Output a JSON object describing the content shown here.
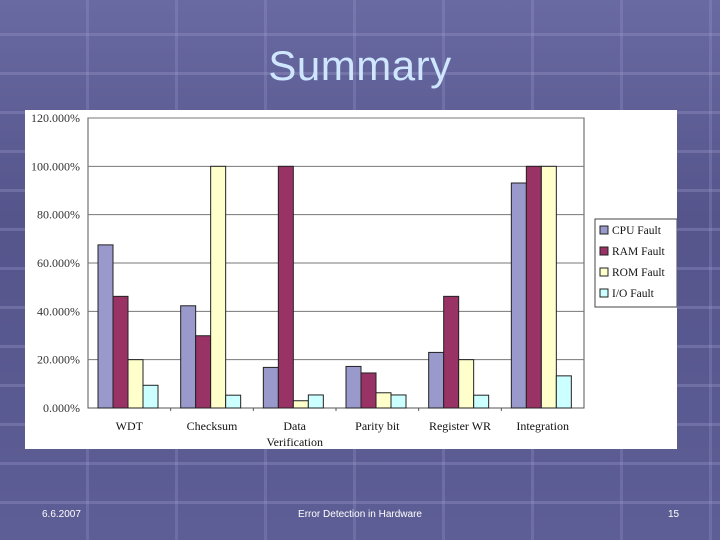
{
  "slide": {
    "title": "Summary",
    "footer": {
      "date": "6.6.2007",
      "center": "Error Detection in Hardware",
      "page": "15"
    }
  },
  "colors": {
    "background": "#5c5c94",
    "title": "#cfe6ff",
    "cpu": "#9999cc",
    "ram": "#993366",
    "rom": "#ffffcc",
    "io": "#ccffff"
  },
  "chart_data": {
    "type": "bar",
    "title": "",
    "xlabel": "",
    "ylabel": "",
    "ylim": [
      0,
      120
    ],
    "yticks": [
      "0.000%",
      "20.000%",
      "40.000%",
      "60.000%",
      "80.000%",
      "100.000%",
      "120.000%"
    ],
    "grid": true,
    "legend_position": "right",
    "categories": [
      "WDT",
      "Checksum",
      "Data Verification",
      "Parity bit",
      "Register WR",
      "Integration"
    ],
    "category_lines": [
      [
        "WDT"
      ],
      [
        "Checksum"
      ],
      [
        "Data",
        "Verification"
      ],
      [
        "Parity bit"
      ],
      [
        "Register WR"
      ],
      [
        "Integration"
      ]
    ],
    "series": [
      {
        "name": "CPU Fault",
        "color": "#9999cc",
        "values": [
          67.5,
          42.3,
          16.8,
          17.2,
          23.0,
          93.1
        ]
      },
      {
        "name": "RAM Fault",
        "color": "#993366",
        "values": [
          46.2,
          29.9,
          100.0,
          14.5,
          46.2,
          100.0
        ]
      },
      {
        "name": "ROM Fault",
        "color": "#ffffcc",
        "values": [
          20.0,
          100.0,
          3.0,
          6.3,
          20.0,
          100.0
        ]
      },
      {
        "name": "I/O Fault",
        "color": "#ccffff",
        "values": [
          9.4,
          5.3,
          5.4,
          5.4,
          5.3,
          13.3
        ]
      }
    ]
  }
}
